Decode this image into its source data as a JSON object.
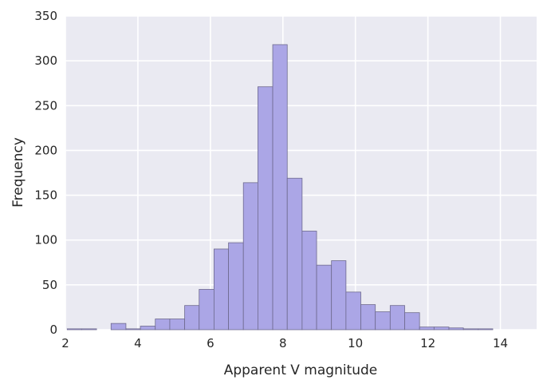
{
  "chart_data": {
    "type": "bar",
    "title": "",
    "xlabel": "Apparent V magnitude",
    "ylabel": "Frequency",
    "xlim": [
      2,
      15
    ],
    "ylim": [
      0,
      350
    ],
    "xticks": [
      "2",
      "4",
      "6",
      "8",
      "10",
      "12",
      "14"
    ],
    "yticks": [
      "0",
      "50",
      "100",
      "150",
      "200",
      "250",
      "300",
      "350"
    ],
    "grid": true,
    "bin_edges": [
      2.05,
      2.45,
      2.86,
      3.26,
      3.67,
      4.07,
      4.48,
      4.88,
      5.29,
      5.69,
      6.1,
      6.5,
      6.91,
      7.31,
      7.72,
      8.12,
      8.53,
      8.93,
      9.34,
      9.74,
      10.15,
      10.55,
      10.96,
      11.36,
      11.77,
      12.17,
      12.58,
      12.98,
      13.39,
      13.79,
      14.2
    ],
    "counts": [
      1,
      1,
      0,
      7,
      1,
      4,
      12,
      12,
      27,
      45,
      90,
      97,
      164,
      271,
      318,
      169,
      110,
      72,
      77,
      42,
      28,
      20,
      27,
      19,
      3,
      3,
      2,
      1,
      1,
      0
    ],
    "colors": {
      "bar": "#aba6e6",
      "edge": "#6e6a8e",
      "background": "#eaeaf2",
      "grid": "#ffffff"
    }
  }
}
